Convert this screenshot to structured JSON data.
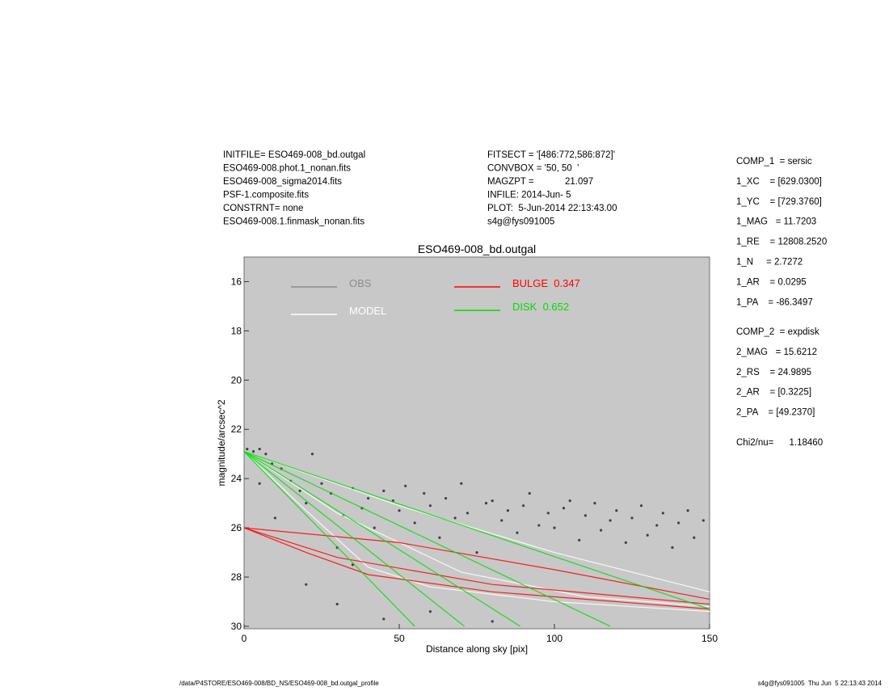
{
  "header": {
    "left": [
      "INITFILE= ESO469-008_bd.outgal",
      "ESO469-008.phot.1_nonan.fits",
      "ESO469-008_sigma2014.fits",
      "PSF-1.composite.fits",
      "CONSTRNT= none",
      "ESO469-008.1.finmask_nonan.fits"
    ],
    "middle": [
      "FITSECT = '[486:772,586:872]'",
      "CONVBOX = '50, 50  '",
      "MAGZPT =            21.097",
      "INFILE: 2014-Jun- 5",
      "PLOT:  5-Jun-2014 22:13:43.00",
      "s4g@fys091005"
    ]
  },
  "params": {
    "comp1": [
      "COMP_1  = sersic",
      "1_XC    = [629.0300]",
      "1_YC    = [729.3760]",
      "1_MAG   = 11.7203",
      "1_RE    = 12808.2520",
      "1_N     = 2.7272",
      "1_AR    = 0.0295",
      "1_PA    = -86.3497"
    ],
    "comp2": [
      "COMP_2  = expdisk",
      "2_MAG   = 15.6212",
      "2_RS    = 24.9895",
      "2_AR    = [0.3225]",
      "2_PA    = [49.2370]"
    ],
    "chi2": "Chi2/nu=      1.18460"
  },
  "footer": {
    "left": "/data/P4STORE/ESO469-008/BD_NS/ESO469-008_bd.outgal_profile",
    "right": "s4g@fys091005  Thu Jun  5 22:13:43 2014"
  },
  "chart_data": {
    "type": "profile",
    "title": "ESO469-008_bd.outgal",
    "x_label": "Distance along sky [pix]",
    "y_label": "magnitude/arcsec^2",
    "xlim": [
      0,
      150
    ],
    "ylim": [
      30.1,
      15
    ],
    "xticks": [
      0,
      50,
      100,
      150
    ],
    "yticks": [
      16,
      18,
      20,
      22,
      24,
      26,
      28,
      30
    ],
    "background": "#c8c8c8",
    "series": [
      {
        "name": "OBS",
        "color": "#404040",
        "legend_color": "#8c8c8c",
        "style": "points",
        "x": [
          1,
          3,
          5,
          7,
          9,
          12,
          15,
          18,
          20,
          22,
          25,
          28,
          30,
          32,
          35,
          38,
          40,
          42,
          45,
          48,
          50,
          52,
          55,
          58,
          60,
          63,
          65,
          68,
          70,
          72,
          75,
          78,
          80,
          83,
          85,
          88,
          90,
          92,
          95,
          98,
          100,
          103,
          105,
          108,
          110,
          113,
          115,
          118,
          120,
          123,
          125,
          128,
          130,
          133,
          135,
          138,
          140,
          143,
          145,
          148,
          30,
          45,
          60,
          80,
          20,
          35,
          10,
          5
        ],
        "values": [
          22.8,
          22.9,
          22.8,
          23.0,
          23.4,
          23.6,
          24.1,
          24.5,
          25.0,
          23.0,
          24.2,
          24.6,
          26.8,
          25.5,
          24.4,
          25.2,
          24.8,
          26.0,
          24.5,
          24.9,
          25.3,
          24.3,
          25.8,
          24.6,
          25.1,
          26.4,
          24.8,
          25.6,
          24.2,
          25.4,
          27.0,
          25.0,
          24.9,
          25.7,
          25.3,
          26.2,
          25.1,
          24.6,
          25.9,
          25.4,
          26.0,
          25.2,
          24.9,
          26.5,
          25.5,
          25.0,
          26.1,
          25.7,
          25.3,
          26.6,
          25.6,
          25.1,
          26.3,
          25.9,
          25.4,
          26.8,
          25.8,
          25.3,
          26.4,
          25.7,
          29.1,
          29.7,
          29.4,
          29.8,
          28.3,
          27.5,
          25.6,
          24.2
        ]
      },
      {
        "name": "MODEL",
        "color": "#ffffff",
        "legend_color": "#ffffff",
        "style": "lines",
        "profiles": [
          {
            "x": [
              0,
              50,
              100,
              150
            ],
            "values": [
              22.9,
              25.1,
              27.0,
              28.6
            ]
          },
          {
            "x": [
              0,
              30,
              70,
              110,
              150
            ],
            "values": [
              22.9,
              25.4,
              27.8,
              28.8,
              29.2
            ]
          },
          {
            "x": [
              0,
              20,
              40,
              60,
              100,
              150
            ],
            "values": [
              22.9,
              25.3,
              27.6,
              28.4,
              29.0,
              29.4
            ]
          }
        ]
      },
      {
        "name": "BULGE  0.347",
        "color": "#ff0000",
        "legend_color": "#ff0000",
        "style": "lines",
        "profiles": [
          {
            "x": [
              0,
              50,
              100,
              150
            ],
            "values": [
              26.0,
              26.6,
              27.7,
              28.9
            ]
          },
          {
            "x": [
              0,
              30,
              80,
              150
            ],
            "values": [
              26.0,
              27.2,
              28.3,
              29.1
            ]
          },
          {
            "x": [
              0,
              20,
              40,
              80,
              150
            ],
            "values": [
              26.0,
              27.0,
              27.9,
              28.6,
              29.3
            ]
          }
        ]
      },
      {
        "name": "DISK  0.652",
        "color": "#00dd00",
        "legend_color": "#00dd00",
        "style": "lines",
        "profiles": [
          {
            "x": [
              0,
              150
            ],
            "values": [
              22.9,
              29.3
            ]
          },
          {
            "x": [
              0,
              118
            ],
            "values": [
              22.9,
              30
            ]
          },
          {
            "x": [
              0,
              89
            ],
            "values": [
              22.9,
              30
            ]
          },
          {
            "x": [
              0,
              71
            ],
            "values": [
              22.9,
              30
            ]
          },
          {
            "x": [
              0,
              55
            ],
            "values": [
              22.9,
              30
            ]
          }
        ]
      }
    ]
  }
}
